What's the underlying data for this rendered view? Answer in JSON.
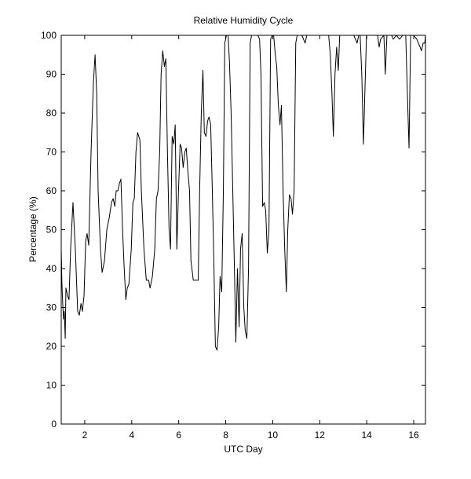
{
  "chart_data": {
    "type": "line",
    "title": "Relative Humidity Cycle",
    "xlabel": "UTC Day",
    "ylabel": "Percentage (%)",
    "color": "#000000",
    "xlim": [
      1,
      16.5
    ],
    "ylim": [
      0,
      100
    ],
    "xticks": [
      2,
      4,
      6,
      8,
      10,
      12,
      14,
      16
    ],
    "yticks": [
      0,
      10,
      20,
      30,
      40,
      50,
      60,
      70,
      80,
      90,
      100
    ],
    "grid": false,
    "x": [
      1.0,
      1.03,
      1.07,
      1.1,
      1.13,
      1.17,
      1.2,
      1.27,
      1.33,
      1.4,
      1.5,
      1.6,
      1.7,
      1.77,
      1.84,
      1.9,
      1.97,
      2.04,
      2.1,
      2.17,
      2.27,
      2.37,
      2.44,
      2.51,
      2.57,
      2.67,
      2.74,
      2.84,
      2.94,
      3.04,
      3.14,
      3.21,
      3.28,
      3.34,
      3.41,
      3.48,
      3.54,
      3.61,
      3.68,
      3.75,
      3.81,
      3.88,
      3.98,
      4.05,
      4.11,
      4.18,
      4.25,
      4.35,
      4.41,
      4.52,
      4.62,
      4.72,
      4.78,
      4.88,
      4.98,
      5.05,
      5.12,
      5.19,
      5.25,
      5.32,
      5.39,
      5.45,
      5.52,
      5.59,
      5.65,
      5.72,
      5.79,
      5.85,
      5.92,
      5.99,
      6.06,
      6.12,
      6.19,
      6.26,
      6.32,
      6.39,
      6.46,
      6.52,
      6.62,
      6.72,
      6.83,
      6.89,
      6.96,
      7.03,
      7.09,
      7.16,
      7.23,
      7.29,
      7.36,
      7.43,
      7.5,
      7.56,
      7.63,
      7.7,
      7.76,
      7.83,
      7.9,
      7.96,
      8.03,
      8.1,
      8.16,
      8.23,
      8.3,
      8.37,
      8.43,
      8.5,
      8.57,
      8.63,
      8.7,
      8.77,
      8.83,
      8.9,
      8.97,
      9.04,
      9.1,
      9.24,
      9.37,
      9.44,
      9.5,
      9.57,
      9.64,
      9.7,
      9.77,
      9.84,
      9.91,
      9.97,
      10.04,
      10.11,
      10.17,
      10.24,
      10.31,
      10.37,
      10.44,
      10.51,
      10.58,
      10.64,
      10.71,
      10.78,
      10.84,
      10.91,
      10.98,
      11.04,
      11.24,
      11.31,
      11.38,
      11.45,
      11.78,
      12.12,
      12.38,
      12.45,
      12.52,
      12.58,
      12.65,
      12.72,
      12.79,
      12.85,
      13.12,
      13.32,
      13.45,
      13.52,
      13.59,
      13.66,
      13.72,
      13.79,
      13.86,
      13.92,
      13.99,
      14.12,
      14.46,
      14.53,
      14.59,
      14.73,
      14.79,
      14.86,
      15.06,
      15.13,
      15.26,
      15.4,
      15.53,
      15.66,
      15.73,
      15.8,
      15.87,
      16.0,
      16.13,
      16.27,
      16.33,
      16.4,
      16.47,
      16.5
    ],
    "values": [
      45,
      36,
      30,
      27,
      29,
      22,
      35,
      33,
      32,
      45,
      57,
      45,
      29,
      28,
      31,
      29,
      33,
      47,
      49,
      46,
      70,
      88,
      95,
      85,
      60,
      45,
      39,
      42,
      50,
      53,
      57,
      58,
      56,
      60,
      60,
      62,
      63,
      50,
      40,
      32,
      35,
      36,
      45,
      57,
      58,
      70,
      75,
      73,
      60,
      45,
      37,
      37,
      35,
      38,
      45,
      58,
      60,
      70,
      90,
      96,
      92,
      94,
      70,
      50,
      45,
      74,
      72,
      77,
      45,
      60,
      72,
      71,
      66,
      70,
      71,
      65,
      60,
      42,
      37,
      37,
      37,
      60,
      80,
      91,
      75,
      74,
      78,
      79,
      77,
      60,
      40,
      20,
      19,
      25,
      38,
      34,
      60,
      98,
      100,
      100,
      93,
      80,
      60,
      40,
      21,
      40,
      25,
      45,
      49,
      30,
      24,
      22,
      40,
      98,
      100,
      100,
      100,
      99,
      90,
      56,
      57,
      55,
      44,
      50,
      99,
      100,
      100,
      95,
      92,
      82,
      77,
      82,
      60,
      45,
      34,
      50,
      59,
      58,
      54,
      60,
      98,
      100,
      100,
      99,
      98,
      100,
      100,
      100,
      100,
      95,
      85,
      74,
      90,
      97,
      91,
      100,
      100,
      100,
      100,
      99,
      98,
      100,
      100,
      90,
      72,
      85,
      100,
      100,
      100,
      97,
      99,
      100,
      90,
      100,
      100,
      99,
      100,
      99,
      100,
      100,
      85,
      71,
      100,
      100,
      99,
      97,
      96,
      98,
      98,
      100
    ]
  }
}
